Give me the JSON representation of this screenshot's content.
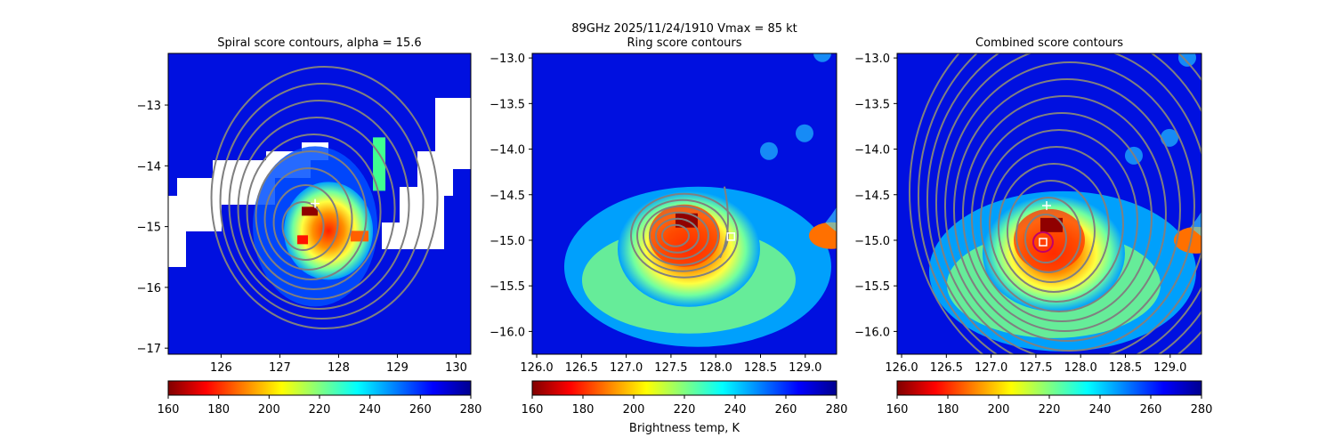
{
  "figure": {
    "suptitle_line1": "89GHz  2025/11/24/1910    Vmax = 85 kt"
  },
  "colors": {
    "jet": [
      "#800000",
      "#ff0000",
      "#ff8000",
      "#ffff00",
      "#80ff80",
      "#00ffff",
      "#0080ff",
      "#0000ff",
      "#00008f"
    ],
    "contour": "#808080",
    "center_ring": "#c0006a",
    "marker": "#ffffff"
  },
  "chart_data": [
    {
      "type": "heatmap",
      "title": "Spiral score contours, alpha = 15.6",
      "xlim": [
        125.1,
        130.25
      ],
      "ylim": [
        -17.1,
        -12.15
      ],
      "xticks": [
        126,
        127,
        128,
        129,
        130
      ],
      "yticks": [
        -13,
        -14,
        -15,
        -16,
        -17
      ],
      "colorbar": {
        "range": [
          160,
          280
        ],
        "ticks": [
          160,
          180,
          200,
          220,
          240,
          260,
          280
        ],
        "label": ""
      },
      "center": [
        127.6,
        -14.85
      ],
      "contour_center": [
        127.35,
        -15.05
      ],
      "markers": [
        {
          "shape": "plus",
          "x": 127.6,
          "y": -14.62
        }
      ]
    },
    {
      "type": "heatmap",
      "title": "Ring score contours",
      "xlim": [
        125.95,
        129.35
      ],
      "ylim": [
        -16.25,
        -12.95
      ],
      "xticks": [
        126.0,
        126.5,
        127.0,
        127.5,
        128.0,
        128.5,
        129.0
      ],
      "yticks": [
        -13.0,
        -13.5,
        -14.0,
        -14.5,
        -15.0,
        -15.5,
        -16.0
      ],
      "colorbar": {
        "range": [
          160,
          280
        ],
        "ticks": [
          160,
          180,
          200,
          220,
          240,
          260,
          280
        ],
        "label": "Brightness temp, K"
      },
      "center": [
        127.6,
        -14.9
      ],
      "markers": [
        {
          "shape": "square",
          "x": 128.17,
          "y": -14.96
        }
      ]
    },
    {
      "type": "heatmap",
      "title": "Combined score contours",
      "xlim": [
        125.95,
        129.35
      ],
      "ylim": [
        -16.25,
        -12.95
      ],
      "xticks": [
        126.0,
        126.5,
        127.0,
        127.5,
        128.0,
        128.5,
        129.0
      ],
      "yticks": [
        -13.0,
        -13.5,
        -14.0,
        -14.5,
        -15.0,
        -15.5,
        -16.0
      ],
      "colorbar": {
        "range": [
          160,
          280
        ],
        "ticks": [
          160,
          180,
          200,
          220,
          240,
          260,
          280
        ],
        "label": ""
      },
      "center": [
        127.6,
        -14.95
      ],
      "contour_center": [
        127.58,
        -15.02
      ],
      "markers": [
        {
          "shape": "plus",
          "x": 127.62,
          "y": -14.62
        },
        {
          "shape": "square",
          "x": 127.58,
          "y": -15.02
        }
      ]
    }
  ]
}
